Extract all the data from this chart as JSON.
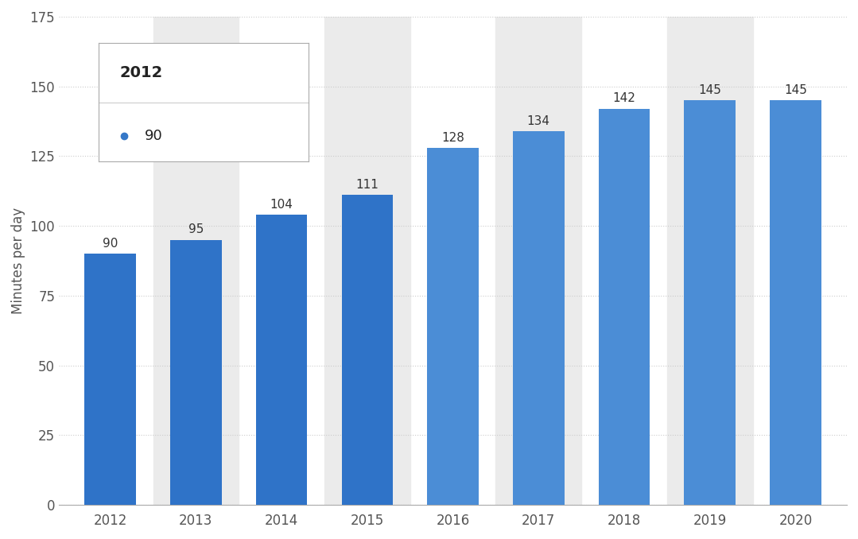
{
  "years": [
    "2012",
    "2013",
    "2014",
    "2015",
    "2016",
    "2017",
    "2018",
    "2019",
    "2020"
  ],
  "values": [
    90,
    95,
    104,
    111,
    128,
    134,
    142,
    145,
    145
  ],
  "bar_colors_dark": [
    "#2F73C8",
    "#2F73C8",
    "#2F73C8",
    "#2F73C8"
  ],
  "bar_colors_light": [
    "#4B8DD6",
    "#4B8DD6",
    "#4B8DD6",
    "#4B8DD6",
    "#4B8DD6"
  ],
  "background_color": "#ffffff",
  "grid_color": "#cccccc",
  "alt_band_color": "#ebebeb",
  "ylabel": "Minutes per day",
  "ylim": [
    0,
    175
  ],
  "yticks": [
    0,
    25,
    50,
    75,
    100,
    125,
    150,
    175
  ],
  "legend_title": "2012",
  "legend_value": "90",
  "legend_dot_color": "#3578C8",
  "bar_label_fontsize": 11,
  "axis_fontsize": 12,
  "ylabel_fontsize": 12,
  "legend_border_color": "#aaaaaa",
  "divider_color": "#cccccc",
  "text_color": "#333333",
  "tick_color": "#555555"
}
